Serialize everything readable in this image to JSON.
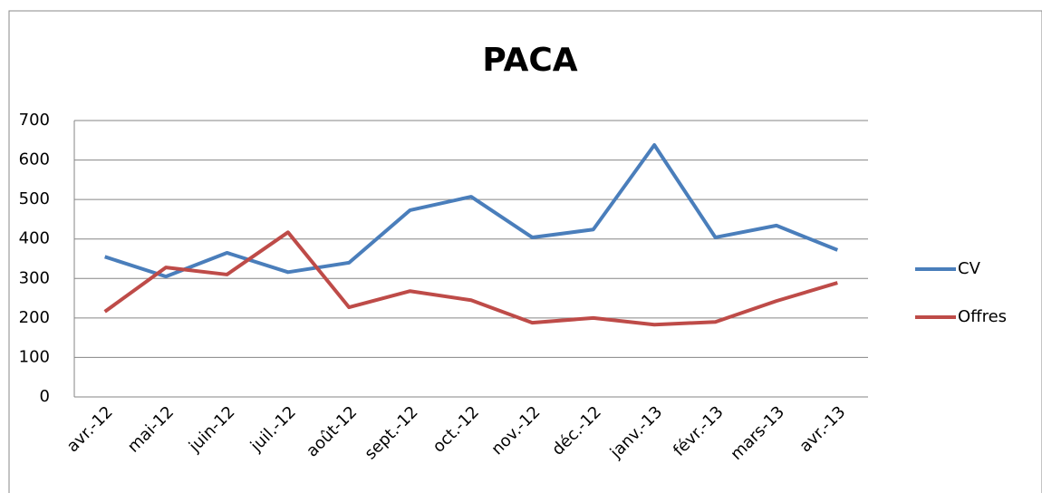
{
  "chart_data": {
    "type": "line",
    "title": "PACA",
    "categories": [
      "avr.-12",
      "mai-12",
      "juin-12",
      "juil.-12",
      "août-12",
      "sept.-12",
      "oct.-12",
      "nov.-12",
      "déc.-12",
      "janv.-13",
      "févr.-13",
      "mars-13",
      "avr.-13"
    ],
    "series": [
      {
        "name": "CV",
        "color": "#4a7ebb",
        "values": [
          355,
          305,
          365,
          316,
          340,
          473,
          507,
          404,
          424,
          638,
          404,
          434,
          372
        ]
      },
      {
        "name": "Offres",
        "color": "#be4b48",
        "values": [
          216,
          328,
          310,
          417,
          227,
          268,
          245,
          188,
          200,
          183,
          190,
          243,
          289
        ]
      }
    ],
    "ylim": [
      0,
      700
    ],
    "yticks": [
      0,
      100,
      200,
      300,
      400,
      500,
      600,
      700
    ],
    "grid": true,
    "legend": "right"
  }
}
